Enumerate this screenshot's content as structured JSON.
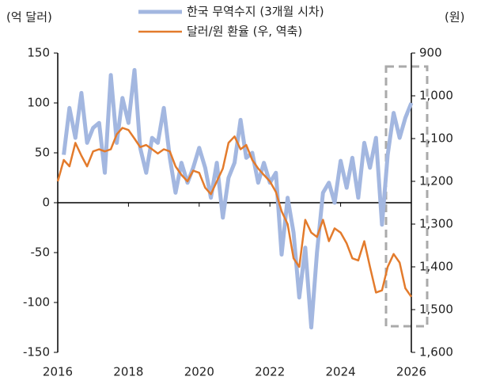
{
  "chart_data": {
    "type": "line",
    "y_label": "(억 달러)",
    "y2_label": "(원)",
    "x": [
      2016.0,
      2016.17,
      2016.33,
      2016.5,
      2016.67,
      2016.83,
      2017.0,
      2017.17,
      2017.33,
      2017.5,
      2017.67,
      2017.83,
      2018.0,
      2018.17,
      2018.33,
      2018.5,
      2018.67,
      2018.83,
      2019.0,
      2019.17,
      2019.33,
      2019.5,
      2019.67,
      2019.83,
      2020.0,
      2020.17,
      2020.33,
      2020.5,
      2020.67,
      2020.83,
      2021.0,
      2021.17,
      2021.33,
      2021.5,
      2021.67,
      2021.83,
      2022.0,
      2022.17,
      2022.33,
      2022.5,
      2022.67,
      2022.83,
      2023.0,
      2023.17,
      2023.33,
      2023.5,
      2023.67,
      2023.83,
      2024.0,
      2024.17,
      2024.33,
      2024.5,
      2024.67,
      2024.83,
      2025.0,
      2025.17,
      2025.33,
      2025.5,
      2025.67,
      2025.83,
      2026.0
    ],
    "series": [
      {
        "name": "한국 무역수지 (3개월 시차)",
        "color": "#a3b7e0",
        "axis": "y",
        "values": [
          null,
          48,
          95,
          65,
          110,
          60,
          75,
          80,
          30,
          128,
          60,
          105,
          80,
          133,
          55,
          30,
          65,
          60,
          95,
          45,
          10,
          40,
          20,
          35,
          55,
          35,
          5,
          40,
          -15,
          25,
          40,
          83,
          45,
          50,
          20,
          40,
          20,
          30,
          -52,
          5,
          -30,
          -95,
          -45,
          -125,
          -50,
          10,
          20,
          0,
          42,
          15,
          45,
          5,
          60,
          35,
          65,
          -22,
          48,
          90,
          65,
          85,
          100
        ]
      },
      {
        "name": "달러/원 환율 (우, 역축)",
        "color": "#e37b2c",
        "axis": "y2",
        "values": [
          1200,
          1150,
          1165,
          1110,
          1140,
          1165,
          1130,
          1125,
          1130,
          1125,
          1090,
          1075,
          1080,
          1100,
          1120,
          1115,
          1125,
          1135,
          1125,
          1130,
          1165,
          1185,
          1200,
          1175,
          1180,
          1215,
          1230,
          1200,
          1170,
          1110,
          1095,
          1125,
          1115,
          1150,
          1170,
          1185,
          1200,
          1225,
          1270,
          1300,
          1380,
          1400,
          1290,
          1320,
          1330,
          1290,
          1340,
          1310,
          1320,
          1345,
          1380,
          1385,
          1340,
          1400,
          1460,
          1455,
          1400,
          1370,
          1390,
          1450,
          1470
        ]
      }
    ],
    "xlim": [
      2016,
      2026
    ],
    "xticks": [
      2016,
      2018,
      2020,
      2022,
      2024,
      2026
    ],
    "ylim": [
      -150,
      150
    ],
    "yticks": [
      -150,
      -100,
      -50,
      0,
      50,
      100,
      150
    ],
    "y2lim": [
      1600,
      900
    ],
    "y2ticks": [
      900,
      {
        "value": 1000,
        "label": "1,000"
      },
      {
        "value": 1100,
        "label": "1,100"
      },
      {
        "value": 1200,
        "label": "1,200"
      },
      {
        "value": 1300,
        "label": "1,300"
      },
      {
        "value": 1400,
        "label": "1,400"
      },
      {
        "value": 1500,
        "label": "1,500"
      },
      {
        "value": 1600,
        "label": "1,600"
      }
    ]
  }
}
